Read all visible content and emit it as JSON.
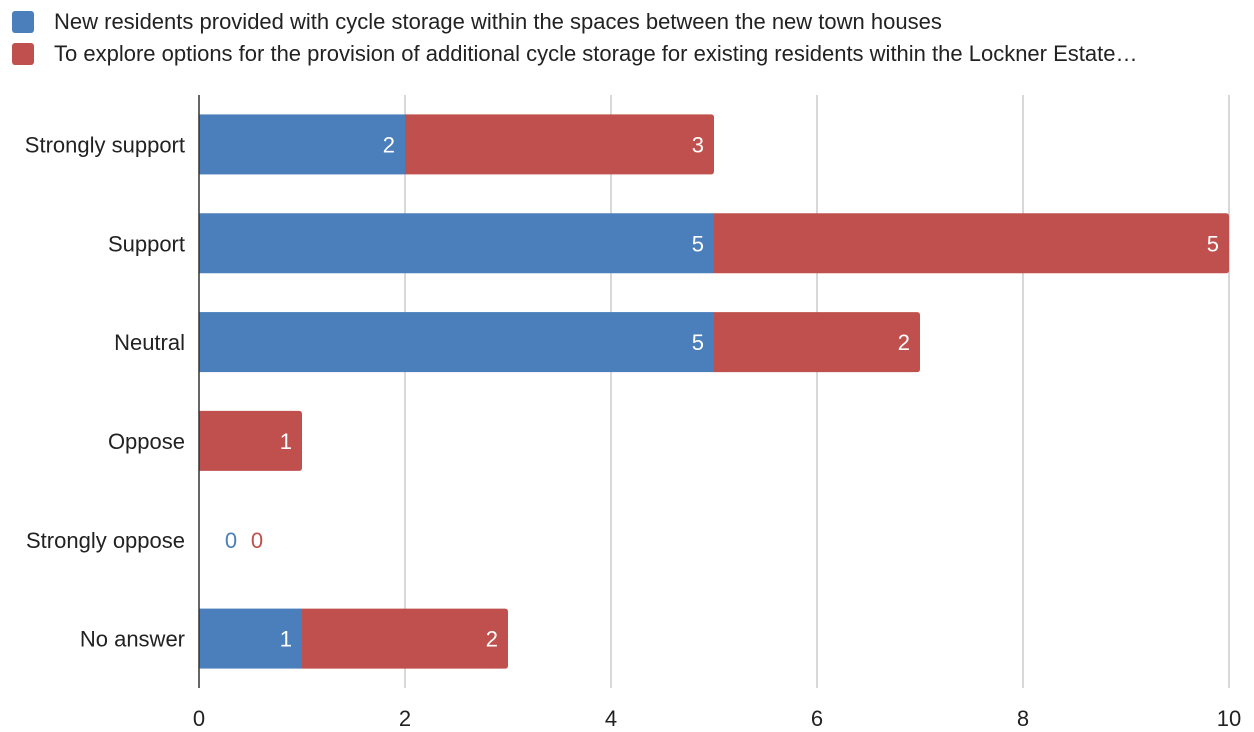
{
  "chart_data": {
    "type": "bar",
    "orientation": "horizontal",
    "stacked": true,
    "categories": [
      "Strongly support",
      "Support",
      "Neutral",
      "Oppose",
      "Strongly oppose",
      "No answer"
    ],
    "series": [
      {
        "name": "New residents provided with cycle storage within the spaces between the new town houses",
        "color": "#4a7fbc",
        "values": [
          2,
          5,
          5,
          0,
          0,
          1
        ]
      },
      {
        "name": "To explore options for the provision of additional cycle storage for existing residents within the Lockner Estate…",
        "color": "#c0504d",
        "values": [
          3,
          5,
          2,
          1,
          0,
          2
        ]
      }
    ],
    "xlim": [
      0,
      10
    ],
    "xticks": [
      "0",
      "2",
      "4",
      "6",
      "8",
      "10"
    ],
    "grid": true,
    "legend_position": "top-left",
    "data_labels": true
  }
}
